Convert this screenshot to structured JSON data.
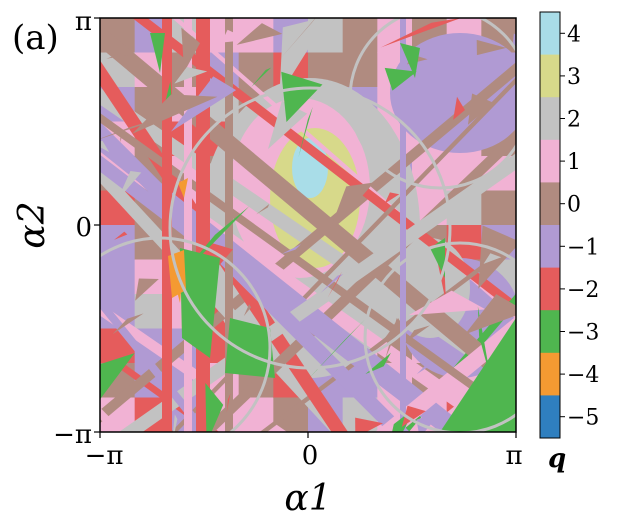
{
  "panel_label": "(a)",
  "chart_data": {
    "type": "heatmap",
    "xlabel": "α1",
    "ylabel": "α2",
    "x_ticks": [
      "−π",
      "0",
      "π"
    ],
    "y_ticks": [
      "−π",
      "0",
      "π"
    ],
    "xlim": [
      -3.14159,
      3.14159
    ],
    "ylim": [
      -3.14159,
      3.14159
    ],
    "colorbar": {
      "label": "q",
      "ticks": [
        "−5",
        "−4",
        "−3",
        "−2",
        "−1",
        "0",
        "1",
        "2",
        "3",
        "4"
      ],
      "levels": [
        {
          "value": 4,
          "color": "#a9dde8"
        },
        {
          "value": 3,
          "color": "#d7d98a"
        },
        {
          "value": 2,
          "color": "#c2c2c2"
        },
        {
          "value": 1,
          "color": "#f1b2d4"
        },
        {
          "value": 0,
          "color": "#b08b80"
        },
        {
          "value": -1,
          "color": "#b09ad3"
        },
        {
          "value": -2,
          "color": "#e55c5c"
        },
        {
          "value": -3,
          "color": "#4fb64f"
        },
        {
          "value": -4,
          "color": "#f49a32"
        },
        {
          "value": -5,
          "color": "#2f7fbf"
        }
      ]
    }
  }
}
